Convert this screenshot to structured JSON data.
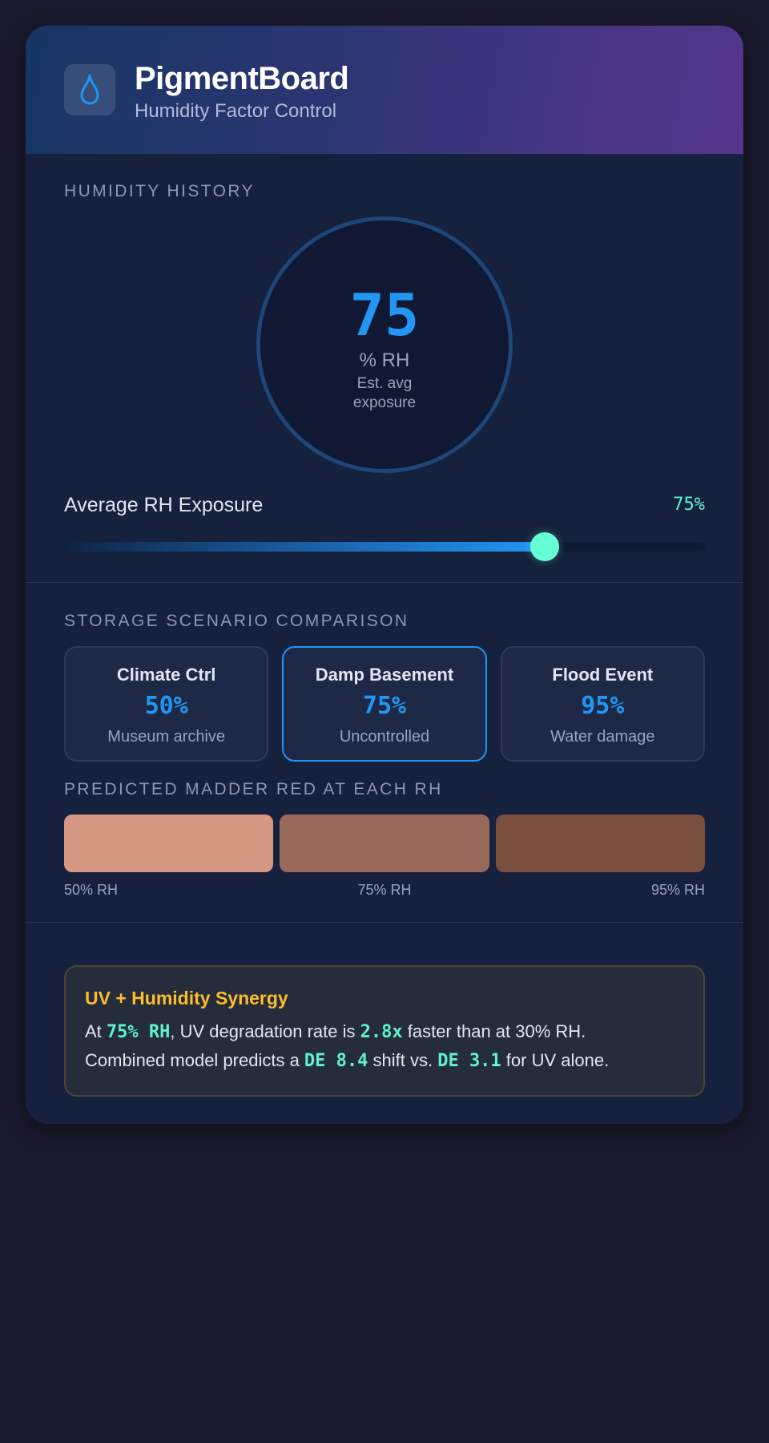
{
  "header": {
    "title": "PigmentBoard",
    "subtitle": "Humidity Factor Control",
    "icon": "water-drop-icon"
  },
  "humidity_history": {
    "section_label": "HUMIDITY HISTORY",
    "gauge_value": "75",
    "gauge_unit": "% RH",
    "gauge_note": "Est. avg exposure"
  },
  "slider": {
    "label": "Average RH Exposure",
    "value_text": "75%",
    "value": 75,
    "min": 0,
    "max": 100
  },
  "scenarios": {
    "section_label": "STORAGE SCENARIO COMPARISON",
    "items": [
      {
        "name": "Climate Ctrl",
        "rh": "50%",
        "desc": "Museum archive",
        "active": false
      },
      {
        "name": "Damp Basement",
        "rh": "75%",
        "desc": "Uncontrolled",
        "active": true
      },
      {
        "name": "Flood Event",
        "rh": "95%",
        "desc": "Water damage",
        "active": false
      }
    ]
  },
  "swatches": {
    "section_label": "PREDICTED MADDER RED AT EACH RH",
    "items": [
      {
        "label": "50% RH",
        "color": "#d69882"
      },
      {
        "label": "75% RH",
        "color": "#996a5b"
      },
      {
        "label": "95% RH",
        "color": "#7a4e3d"
      }
    ]
  },
  "synergy": {
    "title": "UV + Humidity Synergy",
    "line1": {
      "t1": "At ",
      "h1": "75% RH",
      "t2": ", UV degradation rate is ",
      "h2": "2.8x",
      "t3": " faster than at 30% RH."
    },
    "line2": {
      "t1": "Combined model predicts a ",
      "h1": "DE 8.4",
      "t2": " shift vs. ",
      "h2": "DE 3.1",
      "t3": " for UV alone."
    }
  },
  "colors": {
    "accent_blue": "#2196f3",
    "accent_mint": "#5ef2cf",
    "warning_gold": "#fdbd2c",
    "card_bg": "#16213d",
    "page_bg": "#1a192c"
  }
}
